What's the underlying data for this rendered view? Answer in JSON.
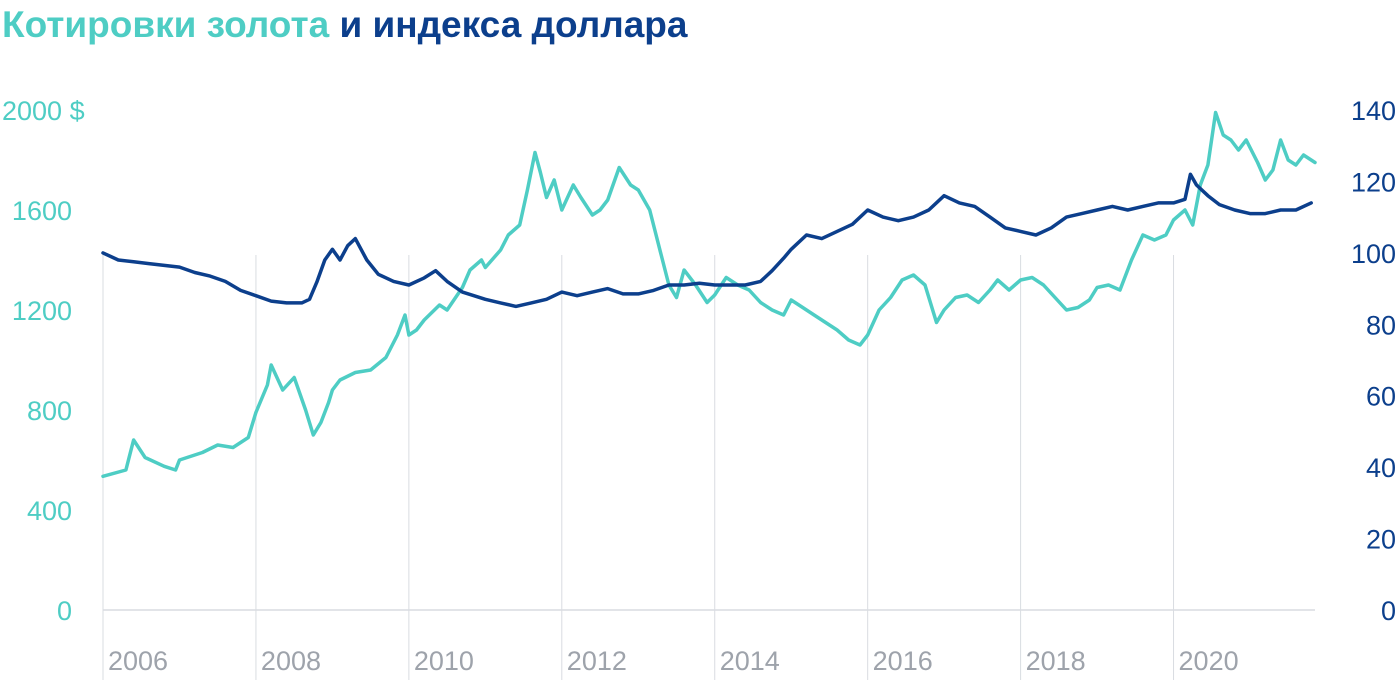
{
  "title": {
    "part1": "Котировки золота",
    "part2": " и индекса доллара"
  },
  "colors": {
    "gold": "#4ecdc4",
    "dollar": "#0c3f8c",
    "grid": "#d9dce1",
    "axis_text": "#9ea3ab"
  },
  "chart_data": {
    "type": "line",
    "title": "Котировки золота и индекса доллара",
    "x_range": [
      2006.0,
      2021.85
    ],
    "x_ticks": [
      "2006",
      "2008",
      "2010",
      "2012",
      "2014",
      "2016",
      "2018",
      "2020"
    ],
    "y_left": {
      "range": [
        0,
        2000
      ],
      "ticks": [
        "0",
        "400",
        "800",
        "1200",
        "1600",
        "2000 $"
      ],
      "unit": "$"
    },
    "y_right": {
      "range": [
        0,
        140
      ],
      "ticks": [
        "0",
        "20",
        "40",
        "60",
        "80",
        "100",
        "120",
        "140"
      ]
    },
    "series": [
      {
        "key": "gold",
        "axis": "left",
        "points": [
          [
            2006.0,
            535
          ],
          [
            2006.3,
            560
          ],
          [
            2006.4,
            680
          ],
          [
            2006.55,
            610
          ],
          [
            2006.8,
            575
          ],
          [
            2006.95,
            560
          ],
          [
            2007.0,
            600
          ],
          [
            2007.3,
            630
          ],
          [
            2007.5,
            660
          ],
          [
            2007.7,
            650
          ],
          [
            2007.9,
            690
          ],
          [
            2008.0,
            790
          ],
          [
            2008.15,
            900
          ],
          [
            2008.2,
            980
          ],
          [
            2008.35,
            880
          ],
          [
            2008.5,
            930
          ],
          [
            2008.65,
            800
          ],
          [
            2008.75,
            700
          ],
          [
            2008.85,
            750
          ],
          [
            2008.95,
            830
          ],
          [
            2009.0,
            880
          ],
          [
            2009.1,
            920
          ],
          [
            2009.3,
            950
          ],
          [
            2009.5,
            960
          ],
          [
            2009.7,
            1010
          ],
          [
            2009.85,
            1100
          ],
          [
            2009.95,
            1180
          ],
          [
            2010.0,
            1100
          ],
          [
            2010.1,
            1120
          ],
          [
            2010.2,
            1160
          ],
          [
            2010.4,
            1220
          ],
          [
            2010.5,
            1200
          ],
          [
            2010.7,
            1290
          ],
          [
            2010.8,
            1360
          ],
          [
            2010.95,
            1400
          ],
          [
            2011.0,
            1370
          ],
          [
            2011.2,
            1440
          ],
          [
            2011.3,
            1500
          ],
          [
            2011.45,
            1540
          ],
          [
            2011.55,
            1680
          ],
          [
            2011.65,
            1830
          ],
          [
            2011.72,
            1750
          ],
          [
            2011.8,
            1650
          ],
          [
            2011.9,
            1720
          ],
          [
            2012.0,
            1600
          ],
          [
            2012.15,
            1700
          ],
          [
            2012.25,
            1650
          ],
          [
            2012.4,
            1580
          ],
          [
            2012.5,
            1600
          ],
          [
            2012.6,
            1640
          ],
          [
            2012.75,
            1770
          ],
          [
            2012.9,
            1700
          ],
          [
            2013.0,
            1680
          ],
          [
            2013.15,
            1600
          ],
          [
            2013.3,
            1420
          ],
          [
            2013.4,
            1300
          ],
          [
            2013.5,
            1250
          ],
          [
            2013.6,
            1360
          ],
          [
            2013.75,
            1300
          ],
          [
            2013.9,
            1230
          ],
          [
            2014.0,
            1260
          ],
          [
            2014.15,
            1330
          ],
          [
            2014.3,
            1300
          ],
          [
            2014.45,
            1280
          ],
          [
            2014.6,
            1230
          ],
          [
            2014.75,
            1200
          ],
          [
            2014.9,
            1180
          ],
          [
            2015.0,
            1240
          ],
          [
            2015.15,
            1210
          ],
          [
            2015.3,
            1180
          ],
          [
            2015.45,
            1150
          ],
          [
            2015.6,
            1120
          ],
          [
            2015.75,
            1080
          ],
          [
            2015.9,
            1060
          ],
          [
            2016.0,
            1100
          ],
          [
            2016.15,
            1200
          ],
          [
            2016.3,
            1250
          ],
          [
            2016.45,
            1320
          ],
          [
            2016.6,
            1340
          ],
          [
            2016.75,
            1300
          ],
          [
            2016.9,
            1150
          ],
          [
            2017.0,
            1200
          ],
          [
            2017.15,
            1250
          ],
          [
            2017.3,
            1260
          ],
          [
            2017.45,
            1230
          ],
          [
            2017.6,
            1280
          ],
          [
            2017.7,
            1320
          ],
          [
            2017.85,
            1280
          ],
          [
            2018.0,
            1320
          ],
          [
            2018.15,
            1330
          ],
          [
            2018.3,
            1300
          ],
          [
            2018.45,
            1250
          ],
          [
            2018.6,
            1200
          ],
          [
            2018.75,
            1210
          ],
          [
            2018.9,
            1240
          ],
          [
            2019.0,
            1290
          ],
          [
            2019.15,
            1300
          ],
          [
            2019.3,
            1280
          ],
          [
            2019.45,
            1400
          ],
          [
            2019.6,
            1500
          ],
          [
            2019.75,
            1480
          ],
          [
            2019.9,
            1500
          ],
          [
            2020.0,
            1560
          ],
          [
            2020.15,
            1600
          ],
          [
            2020.25,
            1540
          ],
          [
            2020.35,
            1700
          ],
          [
            2020.45,
            1780
          ],
          [
            2020.55,
            1990
          ],
          [
            2020.65,
            1900
          ],
          [
            2020.75,
            1880
          ],
          [
            2020.85,
            1840
          ],
          [
            2020.95,
            1880
          ],
          [
            2021.0,
            1850
          ],
          [
            2021.1,
            1790
          ],
          [
            2021.2,
            1720
          ],
          [
            2021.3,
            1760
          ],
          [
            2021.4,
            1880
          ],
          [
            2021.5,
            1800
          ],
          [
            2021.6,
            1780
          ],
          [
            2021.7,
            1820
          ],
          [
            2021.85,
            1790
          ]
        ]
      },
      {
        "key": "dollar",
        "axis": "right",
        "points": [
          [
            2006.0,
            100
          ],
          [
            2006.2,
            98
          ],
          [
            2006.4,
            97.5
          ],
          [
            2006.6,
            97
          ],
          [
            2006.8,
            96.5
          ],
          [
            2007.0,
            96
          ],
          [
            2007.2,
            94.5
          ],
          [
            2007.4,
            93.5
          ],
          [
            2007.6,
            92
          ],
          [
            2007.8,
            89.5
          ],
          [
            2008.0,
            88
          ],
          [
            2008.2,
            86.5
          ],
          [
            2008.4,
            86
          ],
          [
            2008.6,
            86
          ],
          [
            2008.7,
            87
          ],
          [
            2008.8,
            92
          ],
          [
            2008.9,
            98
          ],
          [
            2009.0,
            101
          ],
          [
            2009.1,
            98
          ],
          [
            2009.2,
            102
          ],
          [
            2009.3,
            104
          ],
          [
            2009.45,
            98
          ],
          [
            2009.6,
            94
          ],
          [
            2009.8,
            92
          ],
          [
            2010.0,
            91
          ],
          [
            2010.2,
            93
          ],
          [
            2010.35,
            95
          ],
          [
            2010.5,
            92
          ],
          [
            2010.7,
            89
          ],
          [
            2010.85,
            88
          ],
          [
            2011.0,
            87
          ],
          [
            2011.2,
            86
          ],
          [
            2011.4,
            85
          ],
          [
            2011.6,
            86
          ],
          [
            2011.8,
            87
          ],
          [
            2012.0,
            89
          ],
          [
            2012.2,
            88
          ],
          [
            2012.4,
            89
          ],
          [
            2012.6,
            90
          ],
          [
            2012.8,
            88.5
          ],
          [
            2013.0,
            88.5
          ],
          [
            2013.2,
            89.5
          ],
          [
            2013.4,
            91
          ],
          [
            2013.6,
            91
          ],
          [
            2013.8,
            91.5
          ],
          [
            2014.0,
            91
          ],
          [
            2014.2,
            91
          ],
          [
            2014.4,
            91
          ],
          [
            2014.6,
            92
          ],
          [
            2014.75,
            95
          ],
          [
            2014.9,
            98.5
          ],
          [
            2015.0,
            101
          ],
          [
            2015.2,
            105
          ],
          [
            2015.4,
            104
          ],
          [
            2015.6,
            106
          ],
          [
            2015.8,
            108
          ],
          [
            2016.0,
            112
          ],
          [
            2016.2,
            110
          ],
          [
            2016.4,
            109
          ],
          [
            2016.6,
            110
          ],
          [
            2016.8,
            112
          ],
          [
            2017.0,
            116
          ],
          [
            2017.2,
            114
          ],
          [
            2017.4,
            113
          ],
          [
            2017.6,
            110
          ],
          [
            2017.8,
            107
          ],
          [
            2018.0,
            106
          ],
          [
            2018.2,
            105
          ],
          [
            2018.4,
            107
          ],
          [
            2018.6,
            110
          ],
          [
            2018.8,
            111
          ],
          [
            2019.0,
            112
          ],
          [
            2019.2,
            113
          ],
          [
            2019.4,
            112
          ],
          [
            2019.6,
            113
          ],
          [
            2019.8,
            114
          ],
          [
            2020.0,
            114
          ],
          [
            2020.15,
            115
          ],
          [
            2020.22,
            122
          ],
          [
            2020.3,
            119
          ],
          [
            2020.45,
            116
          ],
          [
            2020.6,
            113.5
          ],
          [
            2020.8,
            112
          ],
          [
            2021.0,
            111
          ],
          [
            2021.2,
            111
          ],
          [
            2021.4,
            112
          ],
          [
            2021.6,
            112
          ],
          [
            2021.8,
            114
          ]
        ]
      }
    ]
  }
}
